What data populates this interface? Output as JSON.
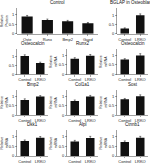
{
  "chart_data": [
    {
      "type": "bar",
      "title": "Control",
      "categories": [
        "Oste",
        "Runx",
        "Bmp2",
        "Gapd"
      ],
      "values": [
        0.9,
        0.72,
        0.65,
        0.55
      ],
      "errors": [
        0.06,
        0.05,
        0.05,
        0.04
      ],
      "ylabel": "Relative\nProtein",
      "color": "#111111",
      "ylim": [
        0,
        1.35
      ],
      "yticks": [
        0,
        0.5,
        1
      ],
      "grid": false
    },
    {
      "type": "bar",
      "title": "Runx2",
      "categories": [
        "Control",
        "LRKO"
      ],
      "values": [
        0.82,
        0.98
      ],
      "errors": [
        0.06,
        0.07
      ],
      "ylabel": "Relative\nmRNA",
      "color": "#111111",
      "ylim": [
        0,
        1.35
      ],
      "yticks": [
        0,
        0.5,
        1
      ],
      "grid": false
    },
    {
      "type": "bar",
      "title": "Osteocalcin",
      "categories": [
        "Control",
        "LRKO"
      ],
      "values": [
        0.78,
        1.0
      ],
      "errors": [
        0.05,
        0.09
      ],
      "ylabel": "Relative\nmRNA",
      "color": "#111111",
      "ylim": [
        0,
        1.35
      ],
      "yticks": [
        0,
        0.5,
        1
      ],
      "grid": false
    },
    {
      "type": "bar",
      "title": "Bmp2",
      "categories": [
        "Control",
        "LRKO"
      ],
      "values": [
        0.8,
        0.98
      ],
      "errors": [
        0.06,
        0.05
      ],
      "ylabel": "Relative\nmRNA",
      "color": "#111111",
      "ylim": [
        0,
        1.35
      ],
      "yticks": [
        0,
        0.5,
        1
      ],
      "grid": false
    },
    {
      "type": "bar",
      "title": "Col1a1",
      "categories": [
        "Control",
        "LRKO"
      ],
      "values": [
        0.75,
        0.98
      ],
      "errors": [
        0.05,
        0.06
      ],
      "ylabel": "Relative\nmRNA",
      "color": "#111111",
      "ylim": [
        0,
        1.35
      ],
      "yticks": [
        0,
        0.5,
        1
      ],
      "grid": false
    },
    {
      "type": "bar",
      "title": "Sost",
      "categories": [
        "Control",
        "LRKO"
      ],
      "values": [
        0.84,
        1.0
      ],
      "errors": [
        0.04,
        0.07
      ],
      "ylabel": "Relative\nmRNA",
      "color": "#111111",
      "ylim": [
        0,
        1.35
      ],
      "yticks": [
        0,
        0.5,
        1
      ],
      "grid": false
    },
    {
      "type": "bar",
      "title": "Dkk1",
      "categories": [
        "Control",
        "LRKO"
      ],
      "values": [
        0.79,
        0.96
      ],
      "errors": [
        0.05,
        0.06
      ],
      "ylabel": "Relative\nmRNA",
      "color": "#111111",
      "ylim": [
        0,
        1.35
      ],
      "yticks": [
        0,
        0.5,
        1
      ],
      "grid": false
    },
    {
      "type": "bar",
      "title": "Alpl",
      "categories": [
        "Control",
        "LRKO"
      ],
      "values": [
        0.76,
        0.95
      ],
      "errors": [
        0.06,
        0.08
      ],
      "ylabel": "Relative\nmRNA",
      "color": "#111111",
      "ylim": [
        0,
        1.35
      ],
      "yticks": [
        0,
        0.5,
        1
      ],
      "grid": false
    },
    {
      "type": "bar",
      "title": "Ctnnb1",
      "categories": [
        "Control",
        "LRKO"
      ],
      "values": [
        0.74,
        0.96
      ],
      "errors": [
        0.05,
        0.07
      ],
      "ylabel": "Relative\nmRNA",
      "color": "#111111",
      "ylim": [
        0,
        1.35
      ],
      "yticks": [
        0,
        0.5,
        1
      ],
      "grid": false
    },
    {
      "type": "bar",
      "title": "BGLAP in Osteoblasts",
      "categories": [
        "Control",
        "LRKO"
      ],
      "values": [
        0.28,
        1.0
      ],
      "errors": [
        0.04,
        0.08
      ],
      "color": "#111111",
      "ylim": [
        0,
        1.4
      ],
      "yticks": [
        0,
        0.5,
        1
      ],
      "grid": false
    },
    {
      "type": "bar",
      "title": "Osteocalcin",
      "categories": [
        "Control",
        "LRKO"
      ],
      "values": [
        1.0,
        0.62
      ],
      "errors": [
        0.07,
        0.05
      ],
      "color": "#111111",
      "ylim": [
        0,
        1.4
      ],
      "yticks": [
        0,
        0.5,
        1
      ],
      "grid": false
    }
  ]
}
